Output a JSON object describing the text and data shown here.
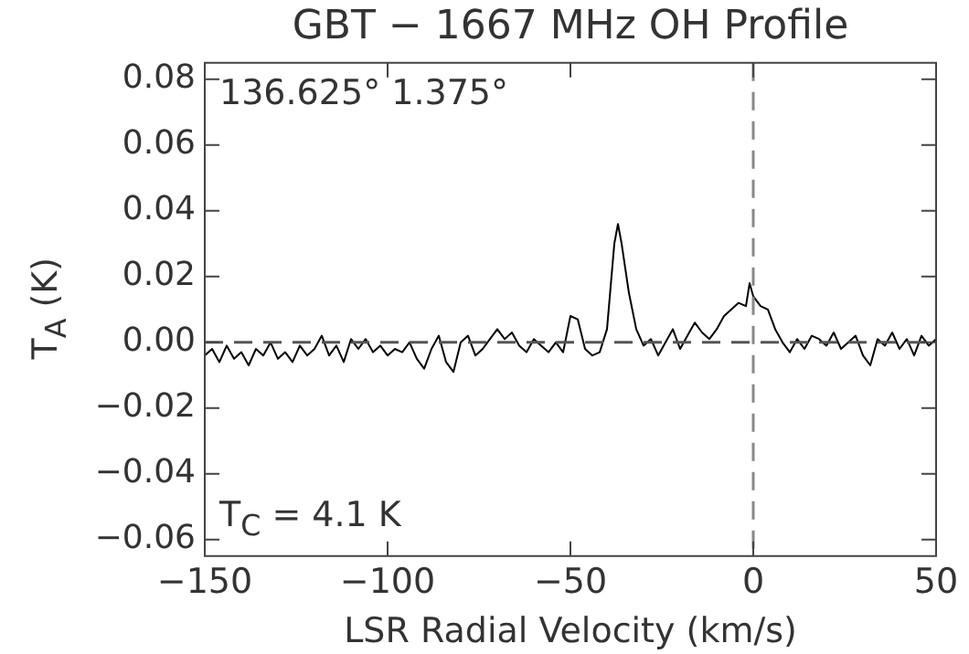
{
  "chart_data": {
    "type": "line",
    "title": "GBT − 1667 MHz OH Profile",
    "xlabel": "LSR Radial Velocity (km/s)",
    "ylabel": "T$_{A}$ (K)",
    "annotations": [
      "136.625° 1.375°",
      "T$_{C}$ = 4.1 K"
    ],
    "x": [
      -150,
      -148,
      -146,
      -144,
      -142,
      -140,
      -138,
      -136,
      -134,
      -132,
      -130,
      -128,
      -126,
      -124,
      -122,
      -120,
      -118,
      -116,
      -114,
      -112,
      -110,
      -108,
      -106,
      -104,
      -102,
      -100,
      -98,
      -96,
      -94,
      -92,
      -90,
      -88,
      -86,
      -84,
      -82,
      -80,
      -78,
      -76,
      -74,
      -72,
      -70,
      -68,
      -66,
      -64,
      -62,
      -60,
      -58,
      -56,
      -54,
      -52,
      -50,
      -48,
      -46,
      -44,
      -42,
      -40,
      -38,
      -37,
      -36,
      -34,
      -32,
      -30,
      -28,
      -26,
      -24,
      -22,
      -20,
      -18,
      -16,
      -14,
      -12,
      -10,
      -8,
      -6,
      -4,
      -2,
      -1,
      0,
      2,
      4,
      6,
      8,
      10,
      12,
      14,
      16,
      18,
      20,
      22,
      24,
      26,
      28,
      30,
      32,
      34,
      36,
      38,
      40,
      42,
      44,
      46,
      48,
      50
    ],
    "series": [
      {
        "color": "#000000",
        "values": [
          -0.004,
          -0.002,
          -0.006,
          -0.001,
          -0.005,
          -0.003,
          -0.007,
          -0.002,
          -0.004,
          0.0,
          -0.005,
          -0.003,
          -0.006,
          -0.001,
          -0.004,
          -0.002,
          0.002,
          -0.004,
          -0.001,
          -0.006,
          0.001,
          -0.002,
          0.001,
          -0.003,
          -0.001,
          -0.004,
          -0.002,
          -0.003,
          0.0,
          -0.005,
          -0.008,
          -0.002,
          0.002,
          -0.006,
          -0.009,
          0.0,
          0.002,
          -0.004,
          -0.002,
          0.001,
          0.004,
          0.001,
          0.003,
          -0.001,
          -0.003,
          0.001,
          -0.001,
          -0.003,
          0.0,
          -0.003,
          0.008,
          0.007,
          -0.002,
          -0.004,
          -0.003,
          0.004,
          0.03,
          0.036,
          0.03,
          0.015,
          0.004,
          -0.001,
          0.001,
          -0.004,
          0.0,
          0.004,
          -0.002,
          0.002,
          0.006,
          0.003,
          0.001,
          0.004,
          0.008,
          0.01,
          0.012,
          0.011,
          0.018,
          0.014,
          0.011,
          0.01,
          0.004,
          0.0,
          -0.003,
          0.001,
          -0.002,
          0.002,
          0.001,
          -0.001,
          0.003,
          -0.002,
          0.0,
          0.002,
          -0.004,
          -0.007,
          0.001,
          -0.001,
          0.003,
          -0.002,
          0.001,
          -0.004,
          0.002,
          -0.001,
          0.001
        ]
      }
    ],
    "xlim": [
      -150,
      50
    ],
    "xticks": [
      {
        "value": -150,
        "label": "−150"
      },
      {
        "value": -100,
        "label": "−100"
      },
      {
        "value": -50,
        "label": "−50"
      },
      {
        "value": 0,
        "label": "0"
      },
      50
    ],
    "ylim": [
      -0.065,
      0.085
    ],
    "yticks": [
      {
        "value": -0.06,
        "label": "−0.06"
      },
      {
        "value": -0.04,
        "label": "−0.04"
      },
      {
        "value": -0.02,
        "label": "−0.02"
      },
      {
        "value": 0,
        "label": "0.00"
      },
      {
        "value": 0.02,
        "label": "0.02"
      },
      {
        "value": 0.04,
        "label": "0.04"
      },
      {
        "value": 0.06,
        "label": "0.06"
      },
      0.08
    ],
    "ref_lines": [
      {
        "axis": "y",
        "value": 0,
        "line_style": "dashed",
        "color": "#555555"
      },
      {
        "axis": "x",
        "value": 0,
        "line_style": "dashed",
        "color": "#888888"
      }
    ],
    "grid": false,
    "legend": false,
    "marker": "none",
    "line_style": "solid"
  }
}
